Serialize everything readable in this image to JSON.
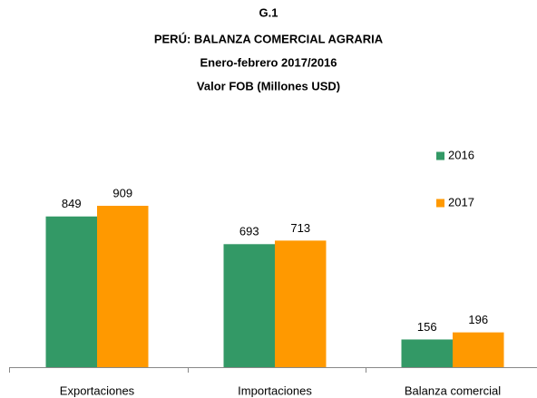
{
  "chart_data": {
    "type": "bar",
    "title": "G.1",
    "subtitle": [
      "PERÚ: BALANZA COMERCIAL AGRARIA",
      "Enero-febrero 2017/2016",
      "Valor FOB (Millones USD)"
    ],
    "categories": [
      "Exportaciones",
      "Importaciones",
      "Balanza comercial"
    ],
    "series": [
      {
        "name": "2016",
        "color": "#339966",
        "values": [
          849,
          693,
          156
        ]
      },
      {
        "name": "2017",
        "color": "#ff9900",
        "values": [
          909,
          713,
          196
        ]
      }
    ]
  }
}
